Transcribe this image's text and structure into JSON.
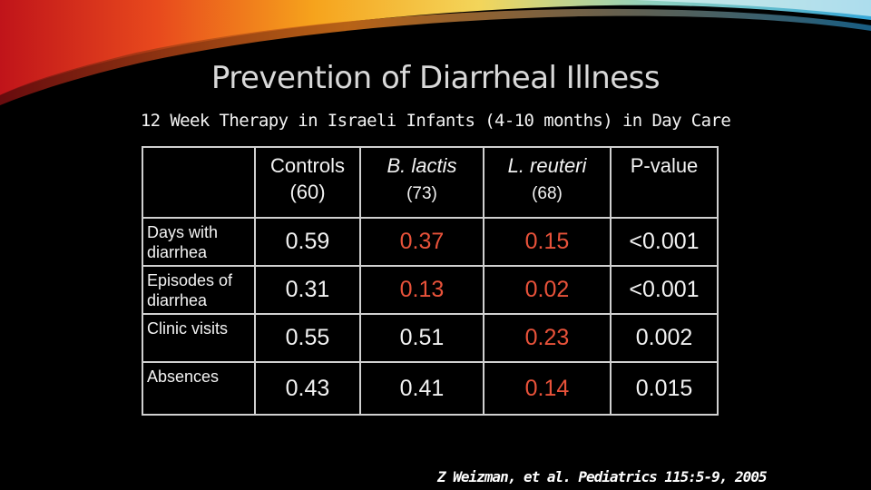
{
  "slide": {
    "title": "Prevention of Diarrheal Illness",
    "subtitle": "12 Week Therapy in Israeli Infants (4-10 months) in Day Care",
    "citation": "Z Weizman, et al. Pediatrics 115:5-9, 2005",
    "accent_color": "#e8523a"
  },
  "table": {
    "columns": [
      {
        "label": "Controls",
        "n": "(60)"
      },
      {
        "label": "B. lactis",
        "n": "(73)"
      },
      {
        "label": "L. reuteri",
        "n": "(68)"
      },
      {
        "label": "P-value",
        "n": ""
      }
    ],
    "rows": [
      {
        "label": "Days with diarrhea",
        "values": [
          "0.59",
          "0.37",
          "0.15",
          "<0.001"
        ]
      },
      {
        "label": "Episodes of diarrhea",
        "values": [
          "0.31",
          "0.13",
          "0.02",
          "<0.001"
        ]
      },
      {
        "label": "Clinic visits",
        "values": [
          "0.55",
          "0.51",
          "0.23",
          "0.002"
        ]
      },
      {
        "label": "Absences",
        "values": [
          "0.43",
          "0.41",
          "0.14",
          "0.015"
        ]
      }
    ]
  }
}
